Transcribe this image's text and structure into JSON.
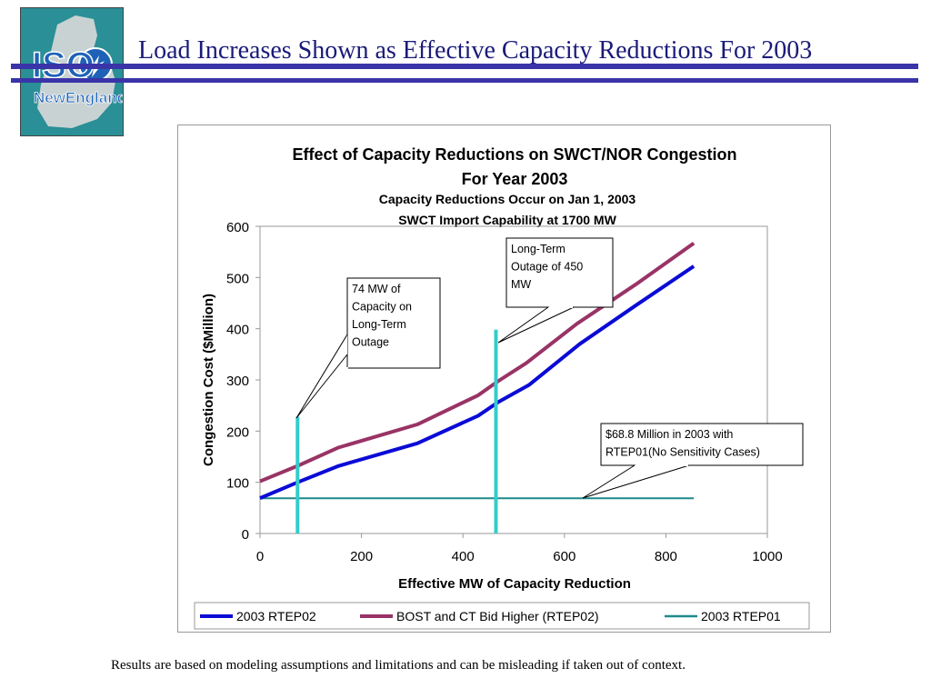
{
  "slide": {
    "title": "Load Increases Shown as Effective Capacity Reductions For 2003",
    "footnote": "Results are based on modeling assumptions and limitations and can be misleading if taken out of context.",
    "logo_text": [
      "ISO",
      "New England"
    ]
  },
  "colors": {
    "title": "#1a1a7a",
    "rule": "#3a34a8",
    "series_rtep02": "#0b0bd6",
    "series_bost": "#993366",
    "series_rtep01": "#1f8a8a",
    "marker": "#33cccc"
  },
  "chart_data": {
    "type": "line",
    "title": "Effect of Capacity Reductions on SWCT/NOR Congestion",
    "title_line2": "For Year 2003",
    "subtitle": "Capacity Reductions Occur on Jan 1, 2003",
    "subtitle_line2": "SWCT Import Capability at 1700 MW",
    "xlabel": "Effective MW of Capacity Reduction",
    "ylabel": "Congestion Cost ($Million)",
    "xlim": [
      0,
      1000
    ],
    "ylim": [
      0,
      600
    ],
    "xticks": [
      0,
      200,
      400,
      600,
      800,
      1000
    ],
    "yticks": [
      0,
      100,
      200,
      300,
      400,
      500,
      600
    ],
    "legend_position": "bottom",
    "series": [
      {
        "name": "2003 RTEP02",
        "x": [
          0,
          74,
          155,
          310,
          430,
          470,
          530,
          630,
          740,
          855
        ],
        "y": [
          69,
          100,
          132,
          176,
          230,
          257,
          290,
          370,
          445,
          522
        ]
      },
      {
        "name": "BOST and CT Bid Higher (RTEP02)",
        "x": [
          0,
          74,
          155,
          310,
          430,
          470,
          525,
          625,
          740,
          855
        ],
        "y": [
          102,
          132,
          168,
          213,
          270,
          298,
          333,
          410,
          486,
          567
        ]
      },
      {
        "name": "2003 RTEP01",
        "x": [
          0,
          855
        ],
        "y": [
          68.8,
          68.8
        ]
      }
    ],
    "markers": [
      {
        "x": 74,
        "y_top": 228
      },
      {
        "x": 465,
        "y_top": 398
      }
    ],
    "annotations": [
      {
        "lines": [
          "74 MW of",
          "Capacity on",
          "Long-Term",
          "Outage"
        ]
      },
      {
        "lines": [
          "Long-Term",
          "Outage of 450",
          "MW"
        ]
      },
      {
        "lines": [
          "$68.8 Million in 2003 with",
          "RTEP01(No Sensitivity Cases)"
        ]
      }
    ]
  }
}
